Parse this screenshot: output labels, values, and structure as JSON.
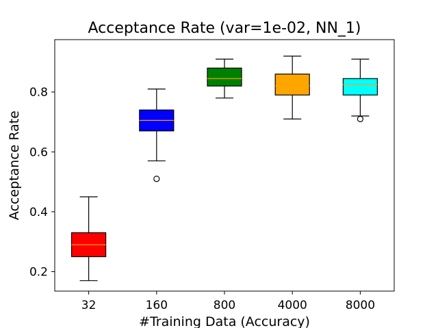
{
  "chart_data": {
    "type": "box",
    "title": "Acceptance Rate (var=1e-02, NN_1)",
    "xlabel": "#Training Data (Accuracy)",
    "ylabel": "Acceptance Rate",
    "ylim": [
      0.135,
      0.975
    ],
    "yticks": [
      0.2,
      0.4,
      0.6,
      0.8
    ],
    "ytick_labels": [
      "0.2",
      "0.4",
      "0.6",
      "0.8"
    ],
    "grid": false,
    "median_color": "#ffa500",
    "categories": [
      "32",
      "160",
      "800",
      "4000",
      "8000"
    ],
    "boxes": [
      {
        "category": "32",
        "color": "#ff0000",
        "whisker_low": 0.17,
        "q1": 0.25,
        "median": 0.29,
        "q3": 0.33,
        "whisker_high": 0.45,
        "outliers": []
      },
      {
        "category": "160",
        "color": "#0000ff",
        "whisker_low": 0.57,
        "q1": 0.67,
        "median": 0.705,
        "q3": 0.74,
        "whisker_high": 0.81,
        "outliers": [
          0.51
        ]
      },
      {
        "category": "800",
        "color": "#008000",
        "whisker_low": 0.78,
        "q1": 0.82,
        "median": 0.845,
        "q3": 0.88,
        "whisker_high": 0.91,
        "outliers": []
      },
      {
        "category": "4000",
        "color": "#ffa500",
        "whisker_low": 0.71,
        "q1": 0.79,
        "median": 0.82,
        "q3": 0.86,
        "whisker_high": 0.92,
        "outliers": []
      },
      {
        "category": "8000",
        "color": "#00ffff",
        "whisker_low": 0.72,
        "q1": 0.79,
        "median": 0.825,
        "q3": 0.845,
        "whisker_high": 0.91,
        "outliers": [
          0.71
        ]
      }
    ]
  }
}
